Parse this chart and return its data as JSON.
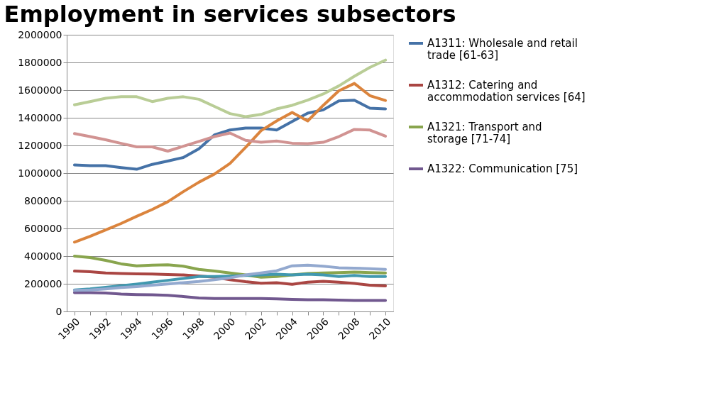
{
  "chart_data": {
    "type": "line",
    "title": "Employment in services subsectors",
    "categories": [
      "1990",
      null,
      "1992",
      null,
      "1994",
      null,
      "1996",
      null,
      "1998",
      null,
      "2000",
      null,
      "2002",
      null,
      "2004",
      null,
      "2006",
      null,
      "2008",
      null,
      "2010"
    ],
    "ylim": [
      0,
      2000000
    ],
    "yticks": [
      0,
      200000,
      400000,
      600000,
      800000,
      1000000,
      1200000,
      1400000,
      1600000,
      1800000,
      2000000
    ],
    "grid": "y",
    "legend": "right",
    "marker": "none",
    "line_style": "solid",
    "series": [
      {
        "name": "A1311: Wholesale and retail trade [61-63]",
        "color": "#4572a7",
        "values": [
          1059000,
          1054000,
          1054000,
          1040000,
          1028000,
          1063000,
          1087000,
          1113000,
          1176000,
          1276000,
          1312000,
          1326000,
          1326000,
          1311000,
          1373000,
          1433000,
          1457000,
          1522000,
          1527000,
          1469000,
          1464000
        ]
      },
      {
        "name": "A1312: Catering and accommodation services [64]",
        "color": "#aa4643",
        "values": [
          292000,
          287000,
          278000,
          274000,
          272000,
          271000,
          267000,
          264000,
          257000,
          247000,
          229000,
          215000,
          204000,
          208000,
          196000,
          211000,
          218000,
          211000,
          203000,
          190000,
          185000
        ]
      },
      {
        "name": "A1321: Transport and storage [71-74]",
        "color": "#89a54e",
        "values": [
          400000,
          390000,
          369000,
          344000,
          330000,
          334000,
          337000,
          327000,
          304000,
          292000,
          278000,
          264000,
          247000,
          252000,
          264000,
          274000,
          278000,
          281000,
          285000,
          281000,
          278000
        ]
      },
      {
        "name": "A1322: Communication [75]",
        "color": "#71588f",
        "values": [
          136000,
          136000,
          133000,
          126000,
          122000,
          120000,
          117000,
          108000,
          98000,
          94000,
          93000,
          94000,
          94000,
          91000,
          87000,
          84000,
          84000,
          82000,
          79000,
          80000,
          80000
        ]
      },
      {
        "color": "#4198af",
        "values": [
          155000,
          163000,
          175000,
          186000,
          198000,
          211000,
          225000,
          238000,
          252000,
          252000,
          255000,
          260000,
          264000,
          269000,
          264000,
          269000,
          264000,
          252000,
          260000,
          252000,
          252000
        ]
      },
      {
        "color": "#db843d",
        "values": [
          501000,
          543000,
          589000,
          636000,
          688000,
          737000,
          793000,
          866000,
          934000,
          993000,
          1070000,
          1185000,
          1307000,
          1377000,
          1438000,
          1377000,
          1490000,
          1595000,
          1648000,
          1560000,
          1525000
        ]
      },
      {
        "color": "#93a9cf",
        "values": [
          152000,
          155000,
          163000,
          173000,
          180000,
          190000,
          199000,
          208000,
          217000,
          229000,
          243000,
          264000,
          278000,
          294000,
          330000,
          335000,
          327000,
          316000,
          313000,
          309000,
          304000
        ]
      },
      {
        "color": "#d19392",
        "values": [
          1286000,
          1264000,
          1241000,
          1215000,
          1190000,
          1190000,
          1159000,
          1194000,
          1229000,
          1264000,
          1290000,
          1237000,
          1223000,
          1232000,
          1216000,
          1213000,
          1223000,
          1264000,
          1316000,
          1311000,
          1267000
        ]
      },
      {
        "color": "#b9cd96",
        "values": [
          1494000,
          1517000,
          1541000,
          1552000,
          1552000,
          1517000,
          1541000,
          1552000,
          1534000,
          1482000,
          1430000,
          1408000,
          1424000,
          1464000,
          1490000,
          1528000,
          1572000,
          1630000,
          1700000,
          1764000,
          1817000
        ]
      }
    ]
  }
}
